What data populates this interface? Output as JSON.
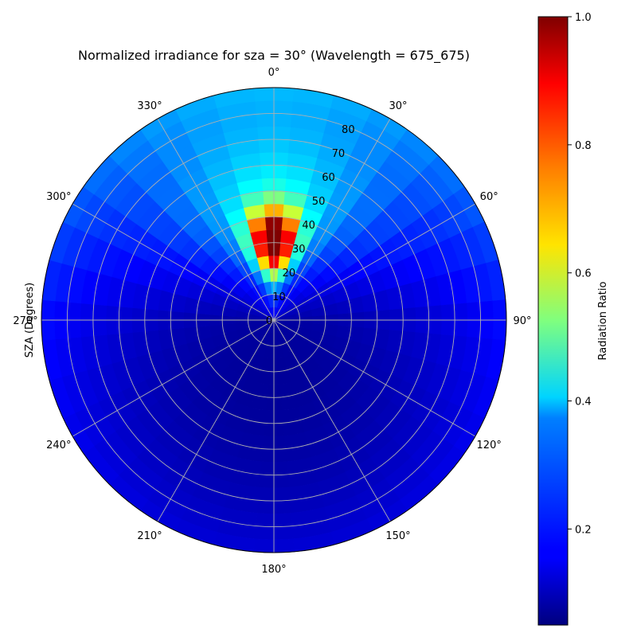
{
  "chart_data": {
    "type": "heatmap",
    "projection": "polar",
    "title": "Normalized irradiance for sza = 30° (Wavelength = 675_675)",
    "ylabel": "SZA (Degrees)",
    "colorbar_label": "Radiation Ratio",
    "colormap": "jet",
    "color_range": [
      0.05,
      1.0
    ],
    "colorbar_ticks": [
      "0.2",
      "0.4",
      "0.6",
      "0.8",
      "1.0"
    ],
    "colorbar_tick_values": [
      0.2,
      0.4,
      0.6,
      0.8,
      1.0
    ],
    "theta_zero": "top",
    "theta_direction": "clockwise",
    "theta_ticks": [
      "0°",
      "30°",
      "60°",
      "90°",
      "120°",
      "150°",
      "180°",
      "210°",
      "240°",
      "270°",
      "300°",
      "330°"
    ],
    "theta_tick_values": [
      0,
      30,
      60,
      90,
      120,
      150,
      180,
      210,
      240,
      270,
      300,
      330
    ],
    "r_ticks": [
      "0",
      "10",
      "20",
      "30",
      "40",
      "50",
      "60",
      "70",
      "80"
    ],
    "r_tick_values": [
      0,
      10,
      20,
      30,
      40,
      50,
      60,
      70,
      80
    ],
    "rlim": [
      0,
      90
    ],
    "grid": true,
    "bin_width_deg": 10,
    "ring_width_deg": 5,
    "peak": {
      "azimuth_center_deg": 0,
      "zenith_center_deg": 30,
      "max_value": 1.0
    },
    "background_value": 0.08
  }
}
